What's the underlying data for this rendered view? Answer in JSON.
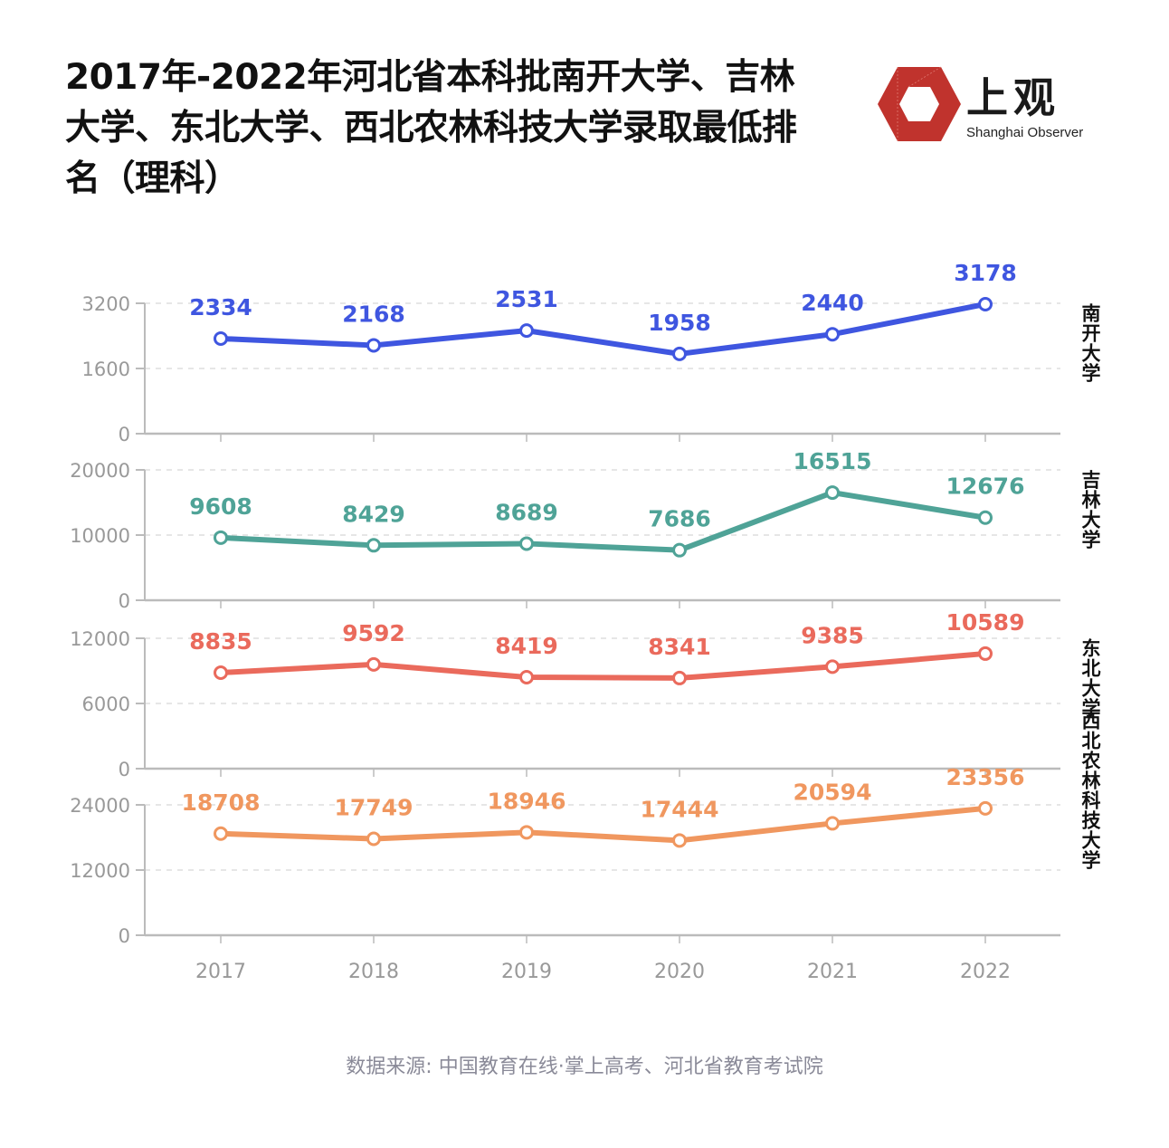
{
  "title": "2017年-2022年河北省本科批南开大学、吉林大学、东北大学、西北农林科技大学录取最低排名（理科）",
  "logo": {
    "cn": "上观",
    "en": "Shanghai Observer",
    "color": "#c0332d"
  },
  "source": "数据来源: 中国教育在线·掌上高考、河北省教育考试院",
  "chart_data": [
    {
      "type": "line",
      "name": "南开大学",
      "x": [
        "2017",
        "2018",
        "2019",
        "2020",
        "2021",
        "2022"
      ],
      "values": [
        2334,
        2168,
        2531,
        1958,
        2440,
        3178
      ],
      "yticks": [
        "0",
        "1600",
        "3200"
      ],
      "ylim": [
        0,
        3200
      ],
      "color": "#3f56e0"
    },
    {
      "type": "line",
      "name": "吉林大学",
      "x": [
        "2017",
        "2018",
        "2019",
        "2020",
        "2021",
        "2022"
      ],
      "values": [
        9608,
        8429,
        8689,
        7686,
        16515,
        12676
      ],
      "yticks": [
        "0",
        "10000",
        "20000"
      ],
      "ylim": [
        0,
        20000
      ],
      "color": "#4fa397"
    },
    {
      "type": "line",
      "name": "东北大学",
      "x": [
        "2017",
        "2018",
        "2019",
        "2020",
        "2021",
        "2022"
      ],
      "values": [
        8835,
        9592,
        8419,
        8341,
        9385,
        10589
      ],
      "yticks": [
        "0",
        "6000",
        "12000"
      ],
      "ylim": [
        0,
        12000
      ],
      "color": "#ea6a5c"
    },
    {
      "type": "line",
      "name": "西北农林科技大学",
      "x": [
        "2017",
        "2018",
        "2019",
        "2020",
        "2021",
        "2022"
      ],
      "values": [
        18708,
        17749,
        18946,
        17444,
        20594,
        23356
      ],
      "yticks": [
        "0",
        "12000",
        "24000"
      ],
      "ylim": [
        0,
        24000
      ],
      "color": "#f0975f"
    }
  ]
}
